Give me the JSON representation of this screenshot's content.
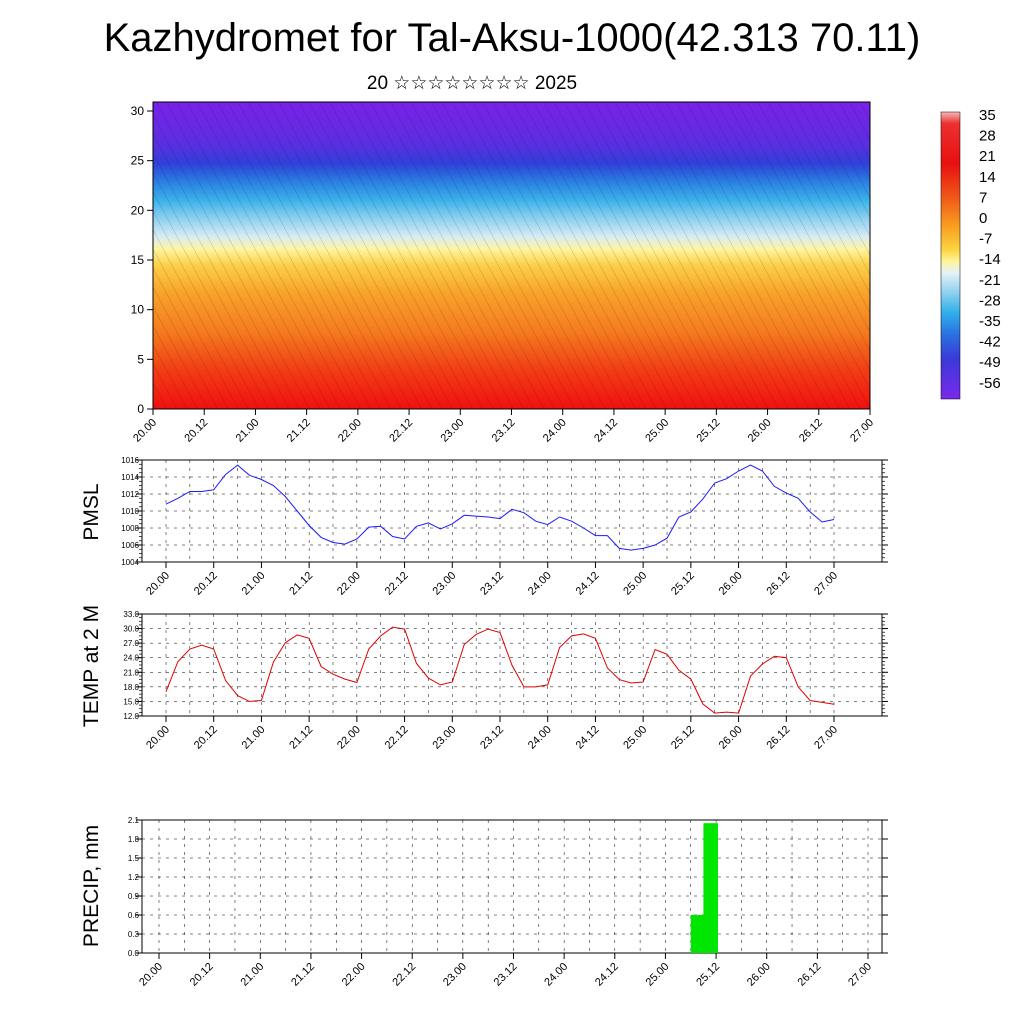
{
  "title": "Kazhydromet for Tal-Aksu-1000(42.313 70.11)",
  "subtitle": "20 ☆☆☆☆☆☆☆☆ 2025",
  "time_ticks": [
    "20.00",
    "20.12",
    "21.00",
    "21.12",
    "22.00",
    "22.12",
    "23.00",
    "23.12",
    "24.00",
    "24.12",
    "25.00",
    "25.12",
    "26.00",
    "26.12",
    "27.00"
  ],
  "colorbar": {
    "labels": [
      "35",
      "28",
      "21",
      "14",
      "7",
      "0",
      "-7",
      "-14",
      "-21",
      "-28",
      "-35",
      "-42",
      "-49",
      "-56"
    ]
  },
  "chart_data": [
    {
      "type": "heatmap",
      "description_level": "vertical cross-section",
      "y_ticks": [
        "30",
        "25",
        "20",
        "15",
        "10",
        "5",
        "0"
      ],
      "ylim": [
        0,
        30
      ],
      "xlim_ticks": [
        "20.00",
        "27.00"
      ],
      "colormap_range": [
        -56,
        35
      ]
    },
    {
      "type": "line",
      "ylabel": "PMSL",
      "ylim": [
        1004,
        1016
      ],
      "y_ticks": [
        "1016",
        "1014",
        "1012",
        "1010",
        "1008",
        "1006",
        "1004"
      ],
      "color": "#1a1aff",
      "values": [
        1010.8,
        1011.5,
        1012.3,
        1012.3,
        1012.5,
        1014.3,
        1015.4,
        1014.2,
        1013.7,
        1013.0,
        1011.7,
        1010.0,
        1008.3,
        1006.9,
        1006.3,
        1006.1,
        1006.7,
        1008.1,
        1008.2,
        1007.0,
        1006.7,
        1008.2,
        1008.6,
        1007.9,
        1008.5,
        1009.5,
        1009.4,
        1009.3,
        1009.1,
        1010.2,
        1009.8,
        1008.8,
        1008.4,
        1009.3,
        1008.8,
        1008.0,
        1007.1,
        1007.1,
        1005.6,
        1005.4,
        1005.6,
        1006.0,
        1006.8,
        1009.3,
        1009.9,
        1011.4,
        1013.3,
        1013.8,
        1014.7,
        1015.4,
        1014.7,
        1012.9,
        1012.1,
        1011.5,
        1009.9,
        1008.7,
        1009.0
      ]
    },
    {
      "type": "line",
      "ylabel": "TEMP at 2 M",
      "ylim": [
        12.0,
        33.0
      ],
      "y_ticks": [
        "33.0",
        "30.0",
        "27.0",
        "24.0",
        "21.0",
        "18.0",
        "15.0",
        "12.0"
      ],
      "color": "#e00000",
      "values": [
        17.0,
        23.2,
        25.8,
        26.6,
        25.8,
        19.3,
        16.2,
        15.0,
        15.2,
        23.1,
        27.1,
        28.7,
        28.0,
        22.2,
        20.6,
        19.6,
        18.9,
        25.8,
        28.5,
        30.3,
        29.9,
        22.8,
        19.8,
        18.4,
        19.0,
        26.7,
        28.8,
        29.9,
        29.2,
        22.5,
        18.0,
        18.0,
        18.4,
        26.1,
        28.5,
        28.9,
        28.0,
        21.9,
        19.5,
        18.8,
        19.0,
        25.7,
        24.7,
        21.4,
        19.6,
        14.5,
        12.6,
        12.8,
        12.6,
        20.2,
        22.7,
        24.3,
        24.0,
        18.0,
        15.2,
        14.8,
        14.4
      ]
    },
    {
      "type": "bar",
      "ylabel": "PRECIP, mm",
      "ylim": [
        0.0,
        2.1
      ],
      "y_ticks": [
        "2.1",
        "1.8",
        "1.5",
        "1.2",
        "0.9",
        "0.6",
        "0.3",
        "0.0"
      ],
      "color": "#00e600",
      "bars": [
        {
          "time": "25.06",
          "value": 0.6
        },
        {
          "time": "25.09",
          "value": 2.05
        }
      ]
    }
  ]
}
